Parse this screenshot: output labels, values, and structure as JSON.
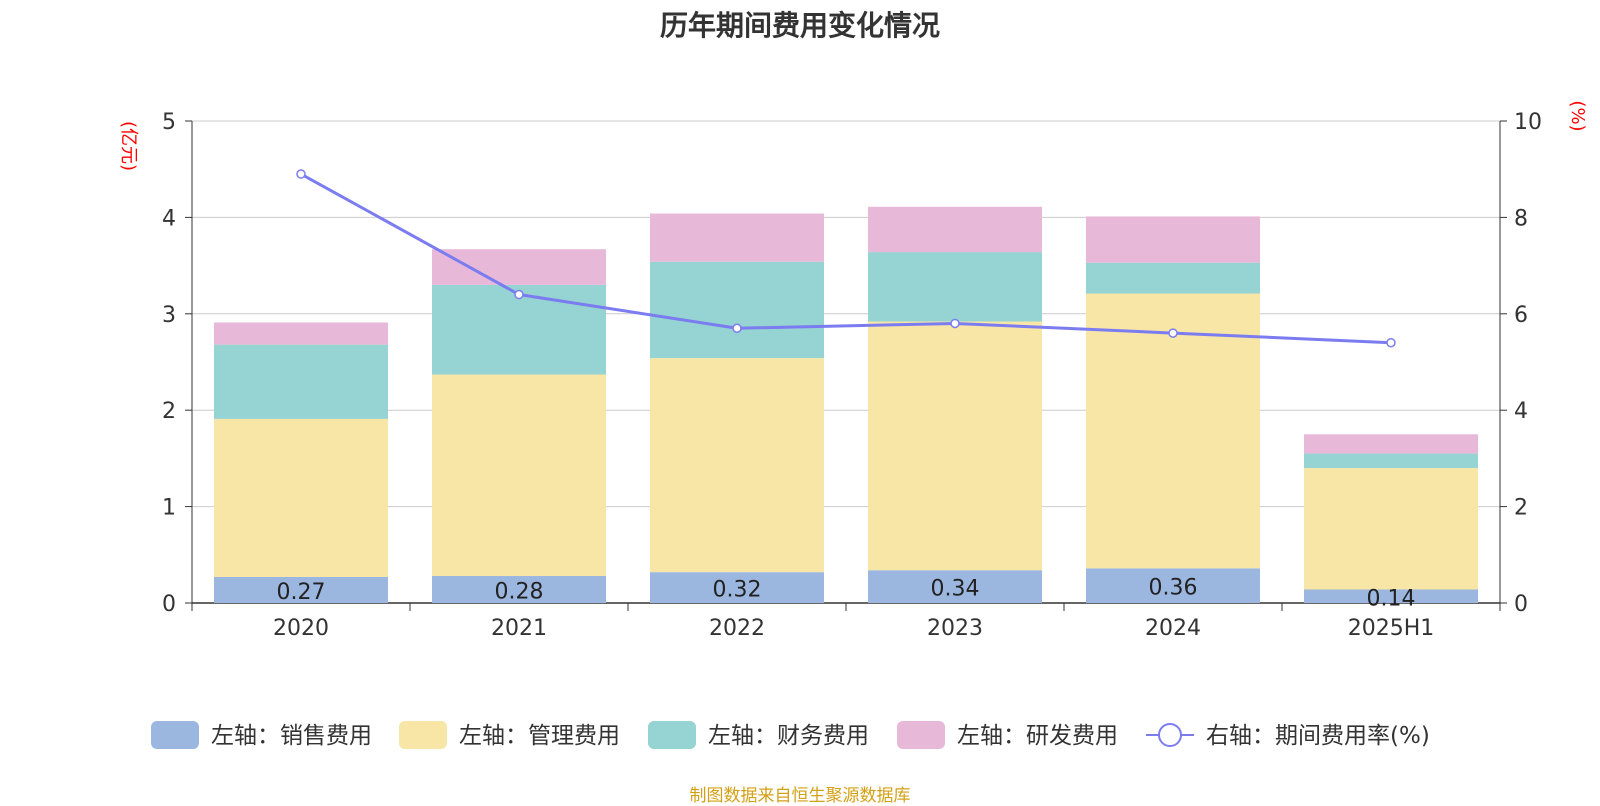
{
  "source_note": "制图数据来自恒生聚源数据库",
  "colors": {
    "sales": "#9bb7e0",
    "admin": "#f7e6a6",
    "finance": "#96d3d3",
    "rnd": "#e7b8d8",
    "rate": "#7b7cf0",
    "axis_unit": "#ff0000",
    "text": "#333333",
    "grid": "#cccccc",
    "source": "#d4a017"
  },
  "chart_data": {
    "type": "bar",
    "title": "历年期间费用变化情况",
    "categories": [
      "2020",
      "2021",
      "2022",
      "2023",
      "2024",
      "2025H1"
    ],
    "y_left": {
      "unit": "(亿元)",
      "min": 0,
      "max": 5,
      "ticks": [
        "0",
        "1",
        "2",
        "3",
        "4",
        "5"
      ]
    },
    "y_right": {
      "unit": "(%)",
      "min": 0,
      "max": 10,
      "ticks": [
        "0",
        "2",
        "4",
        "6",
        "8",
        "10"
      ]
    },
    "grid": true,
    "legend_position": "bottom",
    "series": [
      {
        "name": "左轴：销售费用",
        "axis": "left",
        "type": "bar",
        "color_key": "sales",
        "values": [
          0.27,
          0.28,
          0.32,
          0.34,
          0.36,
          0.14
        ],
        "labels": [
          "0.27",
          "0.28",
          "0.32",
          "0.34",
          "0.36",
          "0.14"
        ]
      },
      {
        "name": "左轴：管理费用",
        "axis": "left",
        "type": "bar",
        "color_key": "admin",
        "values": [
          1.64,
          2.09,
          2.22,
          2.58,
          2.85,
          1.26
        ]
      },
      {
        "name": "左轴：财务费用",
        "axis": "left",
        "type": "bar",
        "color_key": "finance",
        "values": [
          0.77,
          0.93,
          1.0,
          0.72,
          0.32,
          0.15
        ]
      },
      {
        "name": "左轴：研发费用",
        "axis": "left",
        "type": "bar",
        "color_key": "rnd",
        "values": [
          0.23,
          0.37,
          0.5,
          0.47,
          0.48,
          0.2
        ]
      },
      {
        "name": "右轴：期间费用率(%)",
        "axis": "right",
        "type": "line",
        "color_key": "rate",
        "values": [
          8.9,
          6.4,
          5.7,
          5.8,
          5.6,
          5.4
        ]
      }
    ]
  }
}
